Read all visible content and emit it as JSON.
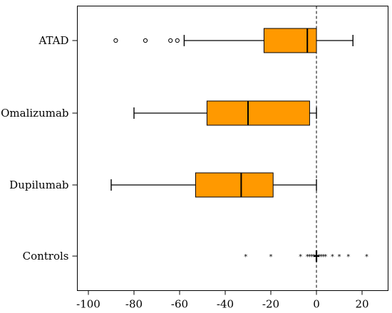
{
  "chart_data": {
    "type": "boxplot",
    "orientation": "horizontal",
    "categories": [
      "ATAD",
      "Omalizumab",
      "Dupilumab",
      "Controls"
    ],
    "box_color": "#ff9900",
    "xlim": [
      -105,
      30
    ],
    "x_ticks": [
      -100,
      -80,
      -60,
      -40,
      -20,
      0,
      20
    ],
    "x_tick_labels": [
      "-100",
      "-80",
      "-60",
      "-40",
      "-20",
      "0",
      "20"
    ],
    "reference_line": 0,
    "grid": false,
    "series": [
      {
        "category": "ATAD",
        "whisker_low": -58,
        "q1": -23,
        "median": -4,
        "q3": 0,
        "whisker_high": 16,
        "outliers": [
          -88,
          -75,
          -64,
          -61
        ],
        "outlier_marker": "circle"
      },
      {
        "category": "Omalizumab",
        "whisker_low": -80,
        "q1": -48,
        "median": -30,
        "q3": -3,
        "whisker_high": 0,
        "outliers": [],
        "outlier_marker": "circle"
      },
      {
        "category": "Dupilumab",
        "whisker_low": -90,
        "q1": -53,
        "median": -33,
        "q3": -19,
        "whisker_high": 0,
        "outliers": [],
        "outlier_marker": "circle"
      },
      {
        "category": "Controls",
        "whisker_low": 0,
        "q1": 0,
        "median": 0,
        "q3": 0,
        "whisker_high": 0,
        "outliers": [
          -31,
          -20,
          -7,
          -4,
          -3,
          -2,
          -1,
          1,
          2,
          3,
          4,
          7,
          10,
          14,
          22
        ],
        "outlier_marker": "star"
      }
    ]
  }
}
